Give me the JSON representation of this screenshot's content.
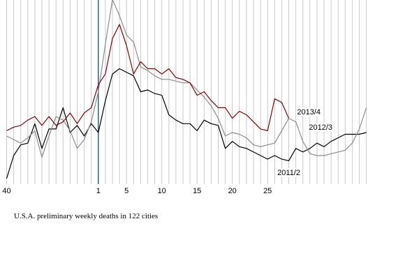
{
  "chart_data": {
    "type": "line",
    "caption": "U.S.A. preliminary weekly deaths in 122 cities",
    "x_week_start": 40,
    "weeks_before_new_year": 13,
    "weeks_shown": 52,
    "x_tick_labels": [
      {
        "week_index": 0,
        "label": "40"
      },
      {
        "week_index": 13,
        "label": "1"
      },
      {
        "week_index": 17,
        "label": "5"
      },
      {
        "week_index": 22,
        "label": "10"
      },
      {
        "week_index": 27,
        "label": "15"
      },
      {
        "week_index": 32,
        "label": "20"
      },
      {
        "week_index": 37,
        "label": "25"
      }
    ],
    "new_year_marker_index": 13,
    "ylim": [
      0,
      100
    ],
    "series": [
      {
        "name": "2011/2",
        "color": "#000000",
        "values": [
          0,
          13,
          19,
          20,
          31,
          17,
          28,
          28,
          40,
          26,
          30,
          24,
          31,
          26,
          44,
          59,
          62,
          60,
          58,
          49,
          50,
          48,
          47,
          36,
          33,
          31,
          31,
          27,
          33,
          31,
          30,
          17,
          21,
          18,
          17,
          15,
          13,
          11,
          13,
          11,
          10,
          17,
          15,
          17,
          20,
          18,
          21,
          23,
          25,
          25,
          25,
          26
        ]
      },
      {
        "name": "2012/3",
        "color": "#8c8c8c",
        "values": [
          24,
          22,
          20,
          23,
          27,
          12,
          24,
          35,
          33,
          27,
          17,
          22,
          32,
          49,
          76,
          101,
          92,
          81,
          77,
          63,
          61,
          58,
          56,
          56,
          55,
          54,
          54,
          50,
          46,
          41,
          34,
          24,
          26,
          25,
          23,
          19,
          18,
          19,
          20,
          27,
          34,
          32,
          21,
          14,
          13,
          13,
          14,
          15,
          16,
          20,
          28,
          40
        ]
      },
      {
        "name": "2013/4",
        "color": "#8b0000",
        "values": [
          27,
          29,
          30,
          33,
          35,
          30,
          35,
          30,
          32,
          37,
          31,
          37,
          40,
          53,
          59,
          79,
          87,
          75,
          59,
          66,
          62,
          62,
          59,
          62,
          57,
          56,
          54,
          47,
          49,
          44,
          40,
          40,
          34,
          38,
          36,
          32,
          28,
          27,
          45,
          43,
          34
        ]
      }
    ]
  }
}
